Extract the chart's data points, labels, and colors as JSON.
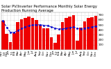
{
  "title": "Solar PV/Inverter Performance Monthly Solar Energy Production Running Average",
  "months": [
    "Nov\n'10",
    "Dec",
    "Jan\n'11",
    "Feb",
    "Mar",
    "Apr",
    "May",
    "Jun",
    "Jul",
    "Aug",
    "Sep",
    "Oct",
    "Nov",
    "Dec",
    "Jan\n'12",
    "Feb",
    "Mar",
    "Apr",
    "May",
    "Jun",
    "Jul",
    "Aug",
    "Sep",
    "Oct",
    "Nov",
    "Dec"
  ],
  "production": [
    580,
    320,
    155,
    330,
    550,
    610,
    640,
    660,
    640,
    600,
    500,
    430,
    430,
    250,
    140,
    310,
    560,
    640,
    670,
    690,
    180,
    440,
    570,
    640,
    650,
    680
  ],
  "running_avg": [
    580,
    450,
    352,
    346,
    388,
    424,
    455,
    481,
    495,
    504,
    501,
    493,
    482,
    460,
    434,
    417,
    420,
    430,
    444,
    458,
    424,
    423,
    432,
    447,
    457,
    470
  ],
  "bar_color": "#EE0000",
  "line_color": "#1111CC",
  "bg_color": "#FFFFFF",
  "plot_bg": "#FFFFFF",
  "ylim": [
    0,
    750
  ],
  "ytick_vals": [
    100,
    200,
    300,
    400,
    500,
    600,
    700
  ],
  "grid_color": "#BBBBBB",
  "title_fontsize": 3.8,
  "tick_fontsize": 3.0,
  "line_width": 0.7,
  "marker_size": 1.0
}
